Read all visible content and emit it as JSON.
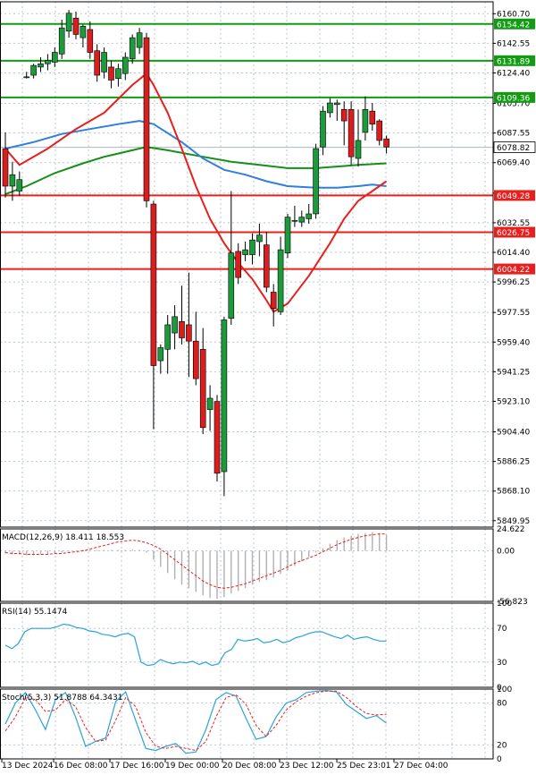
{
  "chart_data": {
    "type": "candlestick",
    "main": {
      "y_ticks": [
        6160.7,
        6142.55,
        6124.4,
        6105.7,
        6087.55,
        6069.4,
        6050.7,
        6032.55,
        6014.4,
        5996.25,
        5977.55,
        5959.4,
        5941.25,
        5923.1,
        5904.4,
        5886.25,
        5868.1,
        5849.95
      ],
      "ylim": [
        5846,
        6168
      ],
      "current_price": 6078.82,
      "horizontal_levels": [
        {
          "value": 6154.42,
          "color": "#129c12"
        },
        {
          "value": 6131.89,
          "color": "#129c12"
        },
        {
          "value": 6109.36,
          "color": "#129c12"
        },
        {
          "value": 6049.28,
          "color": "#e8201d"
        },
        {
          "value": 6026.75,
          "color": "#e8201d"
        },
        {
          "value": 6004.22,
          "color": "#e8201d"
        }
      ],
      "candles": [
        {
          "o": 6078,
          "h": 6088,
          "l": 6048,
          "c": 6055
        },
        {
          "o": 6055,
          "h": 6070,
          "l": 6046,
          "c": 6062
        },
        {
          "o": 6052,
          "h": 6064,
          "l": 6049,
          "c": 6059
        },
        {
          "o": 6122,
          "h": 6125,
          "l": 6121,
          "c": 6122
        },
        {
          "o": 6123,
          "h": 6130,
          "l": 6121,
          "c": 6129
        },
        {
          "o": 6128,
          "h": 6134,
          "l": 6125,
          "c": 6130
        },
        {
          "o": 6130,
          "h": 6136,
          "l": 6126,
          "c": 6132
        },
        {
          "o": 6131,
          "h": 6140,
          "l": 6128,
          "c": 6137
        },
        {
          "o": 6136,
          "h": 6157,
          "l": 6133,
          "c": 6152
        },
        {
          "o": 6150,
          "h": 6163,
          "l": 6146,
          "c": 6161
        },
        {
          "o": 6158,
          "h": 6162,
          "l": 6145,
          "c": 6148
        },
        {
          "o": 6146,
          "h": 6154,
          "l": 6140,
          "c": 6153
        },
        {
          "o": 6151,
          "h": 6156,
          "l": 6133,
          "c": 6137
        },
        {
          "o": 6138,
          "h": 6142,
          "l": 6119,
          "c": 6123
        },
        {
          "o": 6125,
          "h": 6140,
          "l": 6121,
          "c": 6137
        },
        {
          "o": 6128,
          "h": 6132,
          "l": 6115,
          "c": 6120
        },
        {
          "o": 6121,
          "h": 6130,
          "l": 6116,
          "c": 6127
        },
        {
          "o": 6124,
          "h": 6137,
          "l": 6120,
          "c": 6134
        },
        {
          "o": 6133,
          "h": 6148,
          "l": 6130,
          "c": 6146
        },
        {
          "o": 6140,
          "h": 6152,
          "l": 6136,
          "c": 6149
        },
        {
          "o": 6146,
          "h": 6149,
          "l": 6042,
          "c": 6046
        },
        {
          "o": 6044,
          "h": 6046,
          "l": 5906,
          "c": 5945
        },
        {
          "o": 5948,
          "h": 5958,
          "l": 5940,
          "c": 5956
        },
        {
          "o": 5955,
          "h": 5976,
          "l": 5940,
          "c": 5970
        },
        {
          "o": 5965,
          "h": 5982,
          "l": 5955,
          "c": 5975
        },
        {
          "o": 5972,
          "h": 5994,
          "l": 5958,
          "c": 5962
        },
        {
          "o": 5970,
          "h": 6002,
          "l": 5938,
          "c": 5960
        },
        {
          "o": 5960,
          "h": 5978,
          "l": 5933,
          "c": 5937
        },
        {
          "o": 5955,
          "h": 5968,
          "l": 5903,
          "c": 5907
        },
        {
          "o": 5918,
          "h": 5933,
          "l": 5905,
          "c": 5925
        },
        {
          "o": 5923,
          "h": 5927,
          "l": 5874,
          "c": 5879
        },
        {
          "o": 5880,
          "h": 5975,
          "l": 5865,
          "c": 5973
        },
        {
          "o": 5974,
          "h": 6052,
          "l": 5970,
          "c": 6014
        },
        {
          "o": 6015,
          "h": 6020,
          "l": 5995,
          "c": 5999
        },
        {
          "o": 6013,
          "h": 6021,
          "l": 6009,
          "c": 6016
        },
        {
          "o": 6013,
          "h": 6026,
          "l": 6007,
          "c": 6022
        },
        {
          "o": 6021,
          "h": 6032,
          "l": 6012,
          "c": 6025
        },
        {
          "o": 6019,
          "h": 6027,
          "l": 5990,
          "c": 5993
        },
        {
          "o": 5990,
          "h": 5995,
          "l": 5969,
          "c": 5980
        },
        {
          "o": 5978,
          "h": 6024,
          "l": 5976,
          "c": 6016
        },
        {
          "o": 6014,
          "h": 6038,
          "l": 6011,
          "c": 6036
        },
        {
          "o": 6034,
          "h": 6043,
          "l": 6030,
          "c": 6034
        },
        {
          "o": 6033,
          "h": 6040,
          "l": 6030,
          "c": 6036
        },
        {
          "o": 6035,
          "h": 6044,
          "l": 6032,
          "c": 6038
        },
        {
          "o": 6038,
          "h": 6081,
          "l": 6035,
          "c": 6078
        },
        {
          "o": 6079,
          "h": 6104,
          "l": 6074,
          "c": 6101
        },
        {
          "o": 6100,
          "h": 6109,
          "l": 6097,
          "c": 6106
        },
        {
          "o": 6105,
          "h": 6108,
          "l": 6095,
          "c": 6106
        },
        {
          "o": 6102,
          "h": 6107,
          "l": 6080,
          "c": 6095
        },
        {
          "o": 6102,
          "h": 6107,
          "l": 6068,
          "c": 6073
        },
        {
          "o": 6072,
          "h": 6102,
          "l": 6067,
          "c": 6083
        },
        {
          "o": 6088,
          "h": 6110,
          "l": 6083,
          "c": 6102
        },
        {
          "o": 6101,
          "h": 6106,
          "l": 6089,
          "c": 6093
        },
        {
          "o": 6095,
          "h": 6096,
          "l": 6080,
          "c": 6083
        },
        {
          "o": 6084,
          "h": 6086,
          "l": 6075,
          "c": 6079
        }
      ],
      "ma_fast": {
        "color": "#e8201d",
        "points": [
          [
            0,
            6078
          ],
          [
            2,
            6068
          ],
          [
            6,
            6078
          ],
          [
            10,
            6090
          ],
          [
            14,
            6100
          ],
          [
            18,
            6117
          ],
          [
            20,
            6124
          ],
          [
            21,
            6117
          ],
          [
            23,
            6100
          ],
          [
            25,
            6078
          ],
          [
            27,
            6055
          ],
          [
            29,
            6035
          ],
          [
            31,
            6020
          ],
          [
            33,
            6008
          ],
          [
            35,
            5998
          ],
          [
            37,
            5985
          ],
          [
            38,
            5978
          ],
          [
            40,
            5983
          ],
          [
            43,
            6000
          ],
          [
            46,
            6020
          ],
          [
            48,
            6035
          ],
          [
            50,
            6046
          ],
          [
            52,
            6052
          ],
          [
            54,
            6058
          ]
        ]
      },
      "ma_mid": {
        "color": "#2f7fde",
        "points": [
          [
            0,
            6078
          ],
          [
            4,
            6082
          ],
          [
            8,
            6087
          ],
          [
            12,
            6090
          ],
          [
            16,
            6093
          ],
          [
            19,
            6095
          ],
          [
            21,
            6093
          ],
          [
            25,
            6082
          ],
          [
            28,
            6072
          ],
          [
            31,
            6065
          ],
          [
            34,
            6062
          ],
          [
            37,
            6058
          ],
          [
            40,
            6055
          ],
          [
            44,
            6054
          ],
          [
            47,
            6054
          ],
          [
            50,
            6055
          ],
          [
            52,
            6056
          ],
          [
            54,
            6055
          ]
        ]
      },
      "ma_slow": {
        "color": "#168f16",
        "points": [
          [
            0,
            6050
          ],
          [
            3,
            6055
          ],
          [
            7,
            6063
          ],
          [
            11,
            6069
          ],
          [
            14,
            6073
          ],
          [
            18,
            6077
          ],
          [
            20,
            6079
          ],
          [
            23,
            6077
          ],
          [
            28,
            6073
          ],
          [
            32,
            6070
          ],
          [
            36,
            6068
          ],
          [
            40,
            6066
          ],
          [
            44,
            6066
          ],
          [
            47,
            6067
          ],
          [
            50,
            6068
          ],
          [
            54,
            6069
          ]
        ]
      }
    },
    "macd": {
      "label": "MACD(12,26,9) 18.411 18.553",
      "y_ticks": [
        24.622,
        0.0,
        -56.823
      ],
      "ylim": [
        -56.823,
        24.622
      ],
      "histogram": [
        -3,
        -4,
        -4,
        -5,
        -5,
        -4,
        -4,
        -3,
        -2,
        -1,
        0,
        1,
        1,
        1,
        1,
        1,
        1,
        1,
        1,
        1,
        -2,
        -10,
        -18,
        -25,
        -32,
        -38,
        -42,
        -46,
        -50,
        -53,
        -54,
        -52,
        -48,
        -45,
        -42,
        -38,
        -35,
        -33,
        -30,
        -26,
        -22,
        -17,
        -12,
        -7,
        -2,
        3,
        8,
        12,
        15,
        17,
        19,
        20,
        21,
        20,
        18
      ],
      "signal": [
        -2,
        -3,
        -3,
        -4,
        -4,
        -4,
        -4,
        -3,
        -3,
        -2,
        -1,
        0,
        2,
        4,
        6,
        8,
        10,
        11,
        12,
        11,
        9,
        6,
        2,
        -4,
        -10,
        -16,
        -22,
        -28,
        -34,
        -38,
        -41,
        -42,
        -41,
        -39,
        -37,
        -34,
        -31,
        -28,
        -25,
        -22,
        -18,
        -14,
        -11,
        -8,
        -5,
        -1,
        3,
        7,
        10,
        13,
        15,
        17,
        18,
        19,
        19
      ]
    },
    "rsi": {
      "label": "RSI(14) 55.1474",
      "y_ticks": [
        100,
        70,
        30,
        0
      ],
      "ylim": [
        0,
        100
      ],
      "values": [
        50,
        46,
        52,
        66,
        70,
        70,
        70,
        70,
        72,
        75,
        74,
        71,
        70,
        67,
        66,
        63,
        62,
        60,
        63,
        64,
        60,
        30,
        26,
        27,
        33,
        30,
        28,
        30,
        29,
        31,
        27,
        30,
        26,
        28,
        41,
        45,
        57,
        55,
        56,
        58,
        53,
        54,
        57,
        53,
        55,
        59,
        61,
        64,
        66,
        66,
        63,
        60,
        58,
        62,
        57,
        59,
        60,
        57,
        55,
        55
      ]
    },
    "stoch": {
      "label": "Stoch(5,3,3) 51.8788 64.3431",
      "y_ticks": [
        100,
        80,
        20,
        0
      ],
      "ylim": [
        0,
        100
      ],
      "k": [
        50,
        80,
        95,
        70,
        42,
        85,
        95,
        60,
        18,
        25,
        30,
        82,
        96,
        55,
        15,
        12,
        18,
        22,
        8,
        10,
        42,
        85,
        95,
        90,
        58,
        28,
        32,
        60,
        80,
        85,
        95,
        97,
        98,
        96,
        78,
        68,
        58,
        62,
        51
      ],
      "d": [
        40,
        60,
        88,
        85,
        68,
        70,
        85,
        75,
        45,
        25,
        27,
        55,
        88,
        75,
        38,
        18,
        15,
        18,
        15,
        12,
        25,
        60,
        88,
        92,
        78,
        48,
        32,
        48,
        70,
        82,
        90,
        95,
        97,
        97,
        88,
        75,
        65,
        63,
        64
      ]
    },
    "x_labels": [
      "13 Dec 2024",
      "16 Dec 08:00",
      "17 Dec 16:00",
      "19 Dec 00:00",
      "20 Dec 08:00",
      "23 Dec 12:00",
      "25 Dec 23:01",
      "27 Dec 04:00"
    ],
    "colors": {
      "up": "#1d9a3b",
      "down": "#d81e1e",
      "grid": "#b9c7d3",
      "axis": "#000000"
    }
  }
}
